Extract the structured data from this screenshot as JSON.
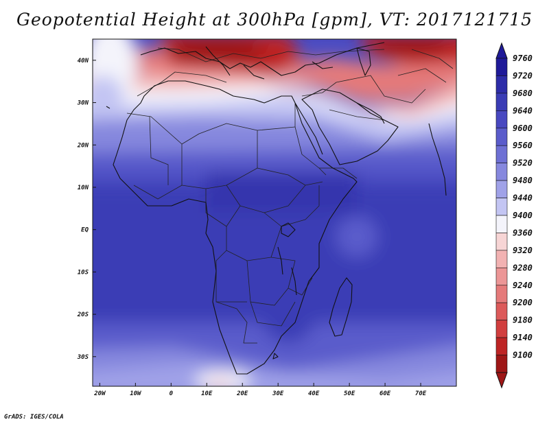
{
  "title": "Geopotential Height at 300hPa [gpm], VT: 2017121715",
  "credit": "GrADS: IGES/COLA",
  "map": {
    "lon_range": [
      -22,
      80
    ],
    "lat_range": [
      -37,
      45
    ],
    "lon_ticks": [
      {
        "value": -20,
        "label": "20W"
      },
      {
        "value": -10,
        "label": "10W"
      },
      {
        "value": 0,
        "label": "0"
      },
      {
        "value": 10,
        "label": "10E"
      },
      {
        "value": 20,
        "label": "20E"
      },
      {
        "value": 30,
        "label": "30E"
      },
      {
        "value": 40,
        "label": "40E"
      },
      {
        "value": 50,
        "label": "50E"
      },
      {
        "value": 60,
        "label": "60E"
      },
      {
        "value": 70,
        "label": "70E"
      }
    ],
    "lat_ticks": [
      {
        "value": 40,
        "label": "40N"
      },
      {
        "value": 30,
        "label": "30N"
      },
      {
        "value": 20,
        "label": "20N"
      },
      {
        "value": 10,
        "label": "10N"
      },
      {
        "value": 0,
        "label": "EQ"
      },
      {
        "value": -10,
        "label": "10S"
      },
      {
        "value": -20,
        "label": "20S"
      },
      {
        "value": -30,
        "label": "30S"
      }
    ]
  },
  "colorbar": {
    "levels": [
      "9760",
      "9720",
      "9680",
      "9640",
      "9600",
      "9560",
      "9520",
      "9480",
      "9440",
      "9400",
      "9360",
      "9320",
      "9280",
      "9240",
      "9200",
      "9180",
      "9140",
      "9100"
    ],
    "colors": [
      "#1f1a99",
      "#2d2ca8",
      "#3a3cb5",
      "#4848c0",
      "#5a5ccb",
      "#6e70d4",
      "#8688de",
      "#a0a2e8",
      "#c3c5f3",
      "#f4f4fb",
      "#f7d5d5",
      "#f2b2b2",
      "#ec9696",
      "#e57a7a",
      "#dc5a5a",
      "#d13e3e",
      "#bd2424",
      "#9e1616"
    ]
  }
}
